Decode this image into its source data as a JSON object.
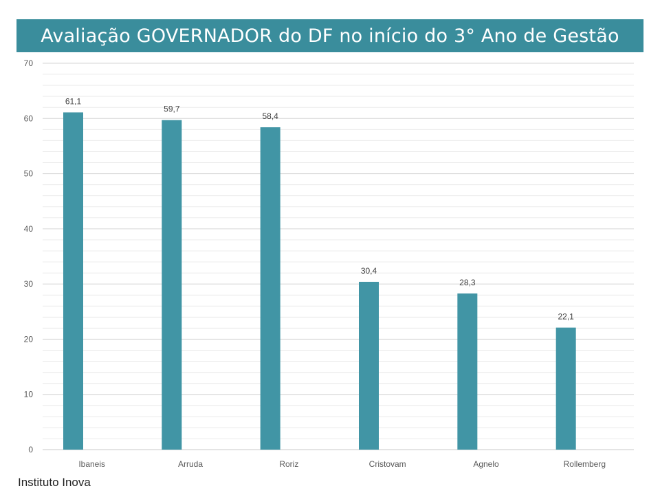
{
  "chart_data": {
    "type": "bar",
    "title": "Avaliação GOVERNADOR do DF no início do 3° Ano de Gestão",
    "categories": [
      "Ibaneis",
      "Arruda",
      "Roriz",
      "Cristovam",
      "Agnelo",
      "Rollemberg"
    ],
    "values": [
      61.1,
      59.7,
      58.4,
      30.4,
      28.3,
      22.1
    ],
    "data_labels": [
      "61,1",
      "59,7",
      "58,4",
      "30,4",
      "28,3",
      "22,1"
    ],
    "ylim": [
      0,
      70
    ],
    "yticks": [
      0,
      10,
      20,
      30,
      40,
      50,
      60,
      70
    ],
    "grid": true,
    "bar_color": "#4195a5"
  },
  "source": "Instituto Inova"
}
